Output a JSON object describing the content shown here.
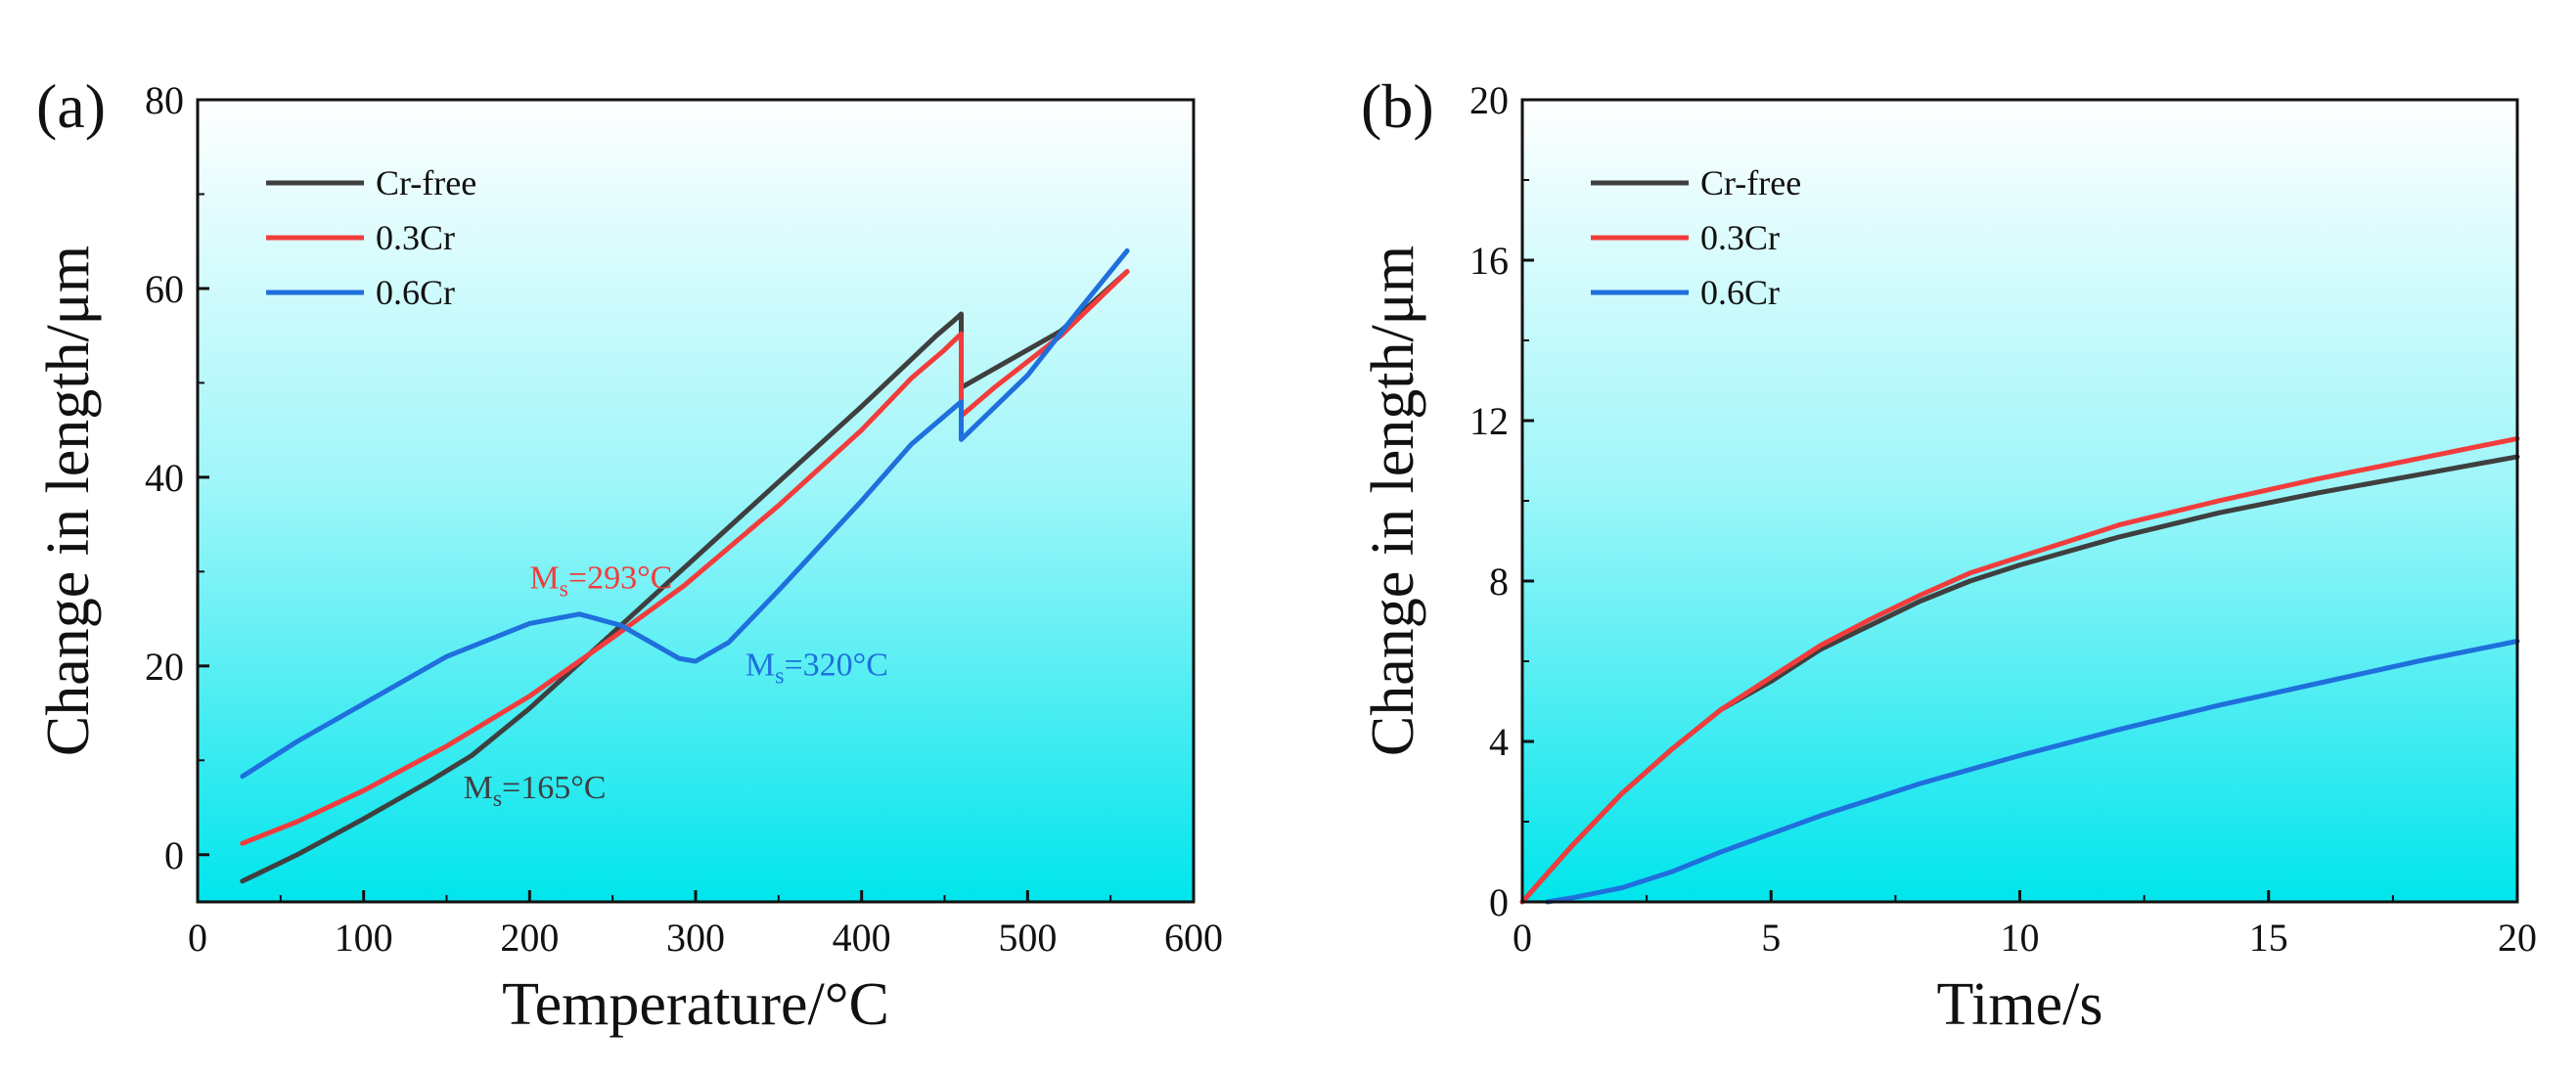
{
  "colors": {
    "cr_free": "#3f3f3f",
    "cr_03": "#f23c3c",
    "cr_06": "#1f6fdc",
    "bg_top": "#ffffff",
    "bg_bottom": "#00e5ec",
    "axis": "#111111"
  },
  "chart_data": [
    {
      "type": "line",
      "panel_label": "(a)",
      "xlabel": "Temperature/°C",
      "ylabel": "Change in length/μm",
      "xlim": [
        0,
        600
      ],
      "ylim": [
        -5,
        80
      ],
      "xticks": [
        0,
        100,
        200,
        300,
        400,
        500,
        600
      ],
      "yticks": [
        0,
        20,
        40,
        60,
        80
      ],
      "xtick_labels": [
        "0",
        "100",
        "200",
        "300",
        "400",
        "500",
        "600"
      ],
      "ytick_labels": [
        "0",
        "20",
        "40",
        "60",
        "80"
      ],
      "legend": {
        "position": "top-left",
        "entries": [
          "Cr-free",
          "0.3Cr",
          "0.6Cr"
        ]
      },
      "series": [
        {
          "name": "Cr-free",
          "color_key": "cr_free",
          "points": [
            [
              27,
              -2.8
            ],
            [
              60,
              0
            ],
            [
              100,
              3.8
            ],
            [
              140,
              7.8
            ],
            [
              165,
              10.5
            ],
            [
              200,
              15.5
            ],
            [
              250,
              23.5
            ],
            [
              300,
              31.5
            ],
            [
              350,
              39.5
            ],
            [
              400,
              47.5
            ],
            [
              430,
              52.5
            ],
            [
              445,
              55
            ],
            [
              455,
              56.5
            ],
            [
              460,
              57.3
            ],
            [
              460,
              49.5
            ],
            [
              480,
              51.5
            ],
            [
              520,
              55.5
            ],
            [
              560,
              61.8
            ]
          ]
        },
        {
          "name": "0.3Cr",
          "color_key": "cr_03",
          "points": [
            [
              27,
              1.2
            ],
            [
              60,
              3.5
            ],
            [
              100,
              6.8
            ],
            [
              150,
              11.5
            ],
            [
              200,
              16.8
            ],
            [
              250,
              23
            ],
            [
              293,
              28.5
            ],
            [
              350,
              37
            ],
            [
              400,
              45
            ],
            [
              430,
              50.5
            ],
            [
              450,
              53.5
            ],
            [
              460,
              55.2
            ],
            [
              460,
              46.5
            ],
            [
              480,
              49.5
            ],
            [
              520,
              55
            ],
            [
              560,
              61.8
            ]
          ]
        },
        {
          "name": "0.6Cr",
          "color_key": "cr_06",
          "points": [
            [
              27,
              8.3
            ],
            [
              60,
              12
            ],
            [
              100,
              16
            ],
            [
              150,
              21
            ],
            [
              200,
              24.5
            ],
            [
              230,
              25.5
            ],
            [
              255,
              24.3
            ],
            [
              275,
              22.3
            ],
            [
              290,
              20.8
            ],
            [
              300,
              20.5
            ],
            [
              320,
              22.5
            ],
            [
              350,
              28
            ],
            [
              400,
              37.5
            ],
            [
              430,
              43.5
            ],
            [
              450,
              46.5
            ],
            [
              460,
              48
            ],
            [
              460,
              44
            ],
            [
              500,
              50.8
            ],
            [
              530,
              57.5
            ],
            [
              560,
              64
            ]
          ]
        }
      ],
      "annotations": [
        {
          "main": "M",
          "sub": "s",
          "rest": "=293°C",
          "color_key": "cr_03",
          "at": [
            200,
            28.2
          ]
        },
        {
          "main": "M",
          "sub": "s",
          "rest": "=320°C",
          "color_key": "cr_06",
          "at": [
            330,
            19.0
          ]
        },
        {
          "main": "M",
          "sub": "s",
          "rest": "=165°C",
          "color_key": "cr_free",
          "at": [
            160,
            6.0
          ]
        }
      ]
    },
    {
      "type": "line",
      "panel_label": "(b)",
      "xlabel": "Time/s",
      "ylabel": "Change in length/μm",
      "xlim": [
        0,
        20
      ],
      "ylim": [
        0,
        20
      ],
      "xticks": [
        0,
        5,
        10,
        15,
        20
      ],
      "yticks": [
        0,
        4,
        8,
        12,
        16,
        20
      ],
      "xtick_labels": [
        "0",
        "5",
        "10",
        "15",
        "20"
      ],
      "ytick_labels": [
        "0",
        "4",
        "8",
        "12",
        "16",
        "20"
      ],
      "legend": {
        "position": "top-left",
        "entries": [
          "Cr-free",
          "0.3Cr",
          "0.6Cr"
        ]
      },
      "series": [
        {
          "name": "Cr-free",
          "color_key": "cr_free",
          "points": [
            [
              0,
              0
            ],
            [
              1,
              1.4
            ],
            [
              2,
              2.7
            ],
            [
              3,
              3.8
            ],
            [
              4,
              4.8
            ],
            [
              5,
              5.5
            ],
            [
              6,
              6.3
            ],
            [
              7,
              6.9
            ],
            [
              8,
              7.5
            ],
            [
              9,
              8
            ],
            [
              10,
              8.4
            ],
            [
              12,
              9.1
            ],
            [
              14,
              9.7
            ],
            [
              16,
              10.2
            ],
            [
              18,
              10.65
            ],
            [
              20,
              11.1
            ]
          ]
        },
        {
          "name": "0.3Cr",
          "color_key": "cr_03",
          "points": [
            [
              0,
              0
            ],
            [
              1,
              1.4
            ],
            [
              2,
              2.7
            ],
            [
              3,
              3.8
            ],
            [
              4,
              4.8
            ],
            [
              5,
              5.6
            ],
            [
              6,
              6.4
            ],
            [
              7,
              7.05
            ],
            [
              8,
              7.65
            ],
            [
              9,
              8.2
            ],
            [
              10,
              8.6
            ],
            [
              12,
              9.4
            ],
            [
              14,
              10
            ],
            [
              16,
              10.55
            ],
            [
              18,
              11.05
            ],
            [
              20,
              11.55
            ]
          ]
        },
        {
          "name": "0.6Cr",
          "color_key": "cr_06",
          "points": [
            [
              0.5,
              0
            ],
            [
              1,
              0.1
            ],
            [
              2,
              0.35
            ],
            [
              3,
              0.75
            ],
            [
              4,
              1.25
            ],
            [
              5,
              1.7
            ],
            [
              6,
              2.15
            ],
            [
              7,
              2.55
            ],
            [
              8,
              2.95
            ],
            [
              9,
              3.3
            ],
            [
              10,
              3.65
            ],
            [
              12,
              4.3
            ],
            [
              14,
              4.9
            ],
            [
              16,
              5.45
            ],
            [
              18,
              6
            ],
            [
              20,
              6.5
            ]
          ]
        }
      ],
      "annotations": []
    }
  ]
}
